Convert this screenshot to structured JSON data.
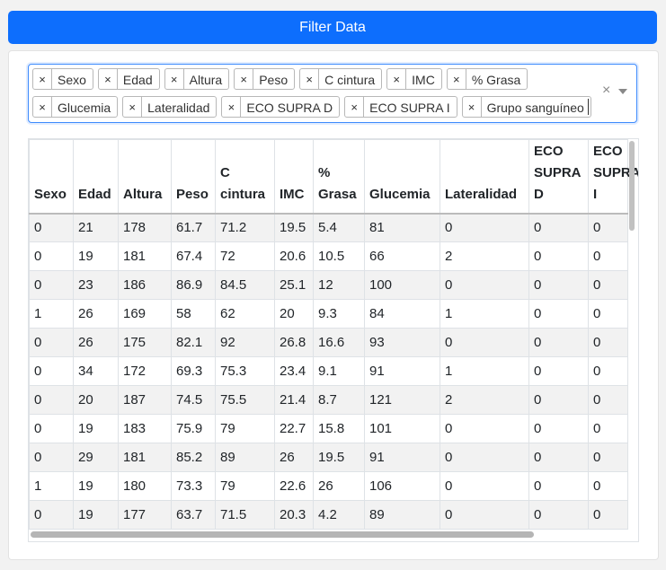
{
  "filter_button": {
    "label": "Filter Data"
  },
  "selected_chips": [
    {
      "label": "Sexo"
    },
    {
      "label": "Edad"
    },
    {
      "label": "Altura"
    },
    {
      "label": "Peso"
    },
    {
      "label": "C cintura"
    },
    {
      "label": "IMC"
    },
    {
      "label": "% Grasa"
    },
    {
      "label": "Glucemia"
    },
    {
      "label": "Lateralidad"
    },
    {
      "label": "ECO SUPRA D"
    },
    {
      "label": "ECO SUPRA I"
    },
    {
      "label": "Grupo sanguíneo"
    }
  ],
  "chip_remove_glyph": "×",
  "clear_all_glyph": "×",
  "table": {
    "columns": [
      "Sexo",
      "Edad",
      "Altura",
      "Peso",
      "C cintura",
      "IMC",
      "% Grasa",
      "Glucemia",
      "Lateralidad",
      "ECO SUPRA D",
      "ECO SUPRA I"
    ],
    "rows": [
      [
        "0",
        "21",
        "178",
        "61.7",
        "71.2",
        "19.5",
        "5.4",
        "81",
        "0",
        "0",
        "0"
      ],
      [
        "0",
        "19",
        "181",
        "67.4",
        "72",
        "20.6",
        "10.5",
        "66",
        "2",
        "0",
        "0"
      ],
      [
        "0",
        "23",
        "186",
        "86.9",
        "84.5",
        "25.1",
        "12",
        "100",
        "0",
        "0",
        "0"
      ],
      [
        "1",
        "26",
        "169",
        "58",
        "62",
        "20",
        "9.3",
        "84",
        "1",
        "0",
        "0"
      ],
      [
        "0",
        "26",
        "175",
        "82.1",
        "92",
        "26.8",
        "16.6",
        "93",
        "0",
        "0",
        "0"
      ],
      [
        "0",
        "34",
        "172",
        "69.3",
        "75.3",
        "23.4",
        "9.1",
        "91",
        "1",
        "0",
        "0"
      ],
      [
        "0",
        "20",
        "187",
        "74.5",
        "75.5",
        "21.4",
        "8.7",
        "121",
        "2",
        "0",
        "0"
      ],
      [
        "0",
        "19",
        "183",
        "75.9",
        "79",
        "22.7",
        "15.8",
        "101",
        "0",
        "0",
        "0"
      ],
      [
        "0",
        "29",
        "181",
        "85.2",
        "89",
        "26",
        "19.5",
        "91",
        "0",
        "0",
        "0"
      ],
      [
        "1",
        "19",
        "180",
        "73.3",
        "79",
        "22.6",
        "26",
        "106",
        "0",
        "0",
        "0"
      ],
      [
        "0",
        "19",
        "177",
        "63.7",
        "71.5",
        "20.3",
        "4.2",
        "89",
        "0",
        "0",
        "0"
      ]
    ]
  },
  "colors": {
    "primary": "#0d6efd",
    "focus_border": "#3d8bfd",
    "stripe": "#f2f2f2"
  }
}
